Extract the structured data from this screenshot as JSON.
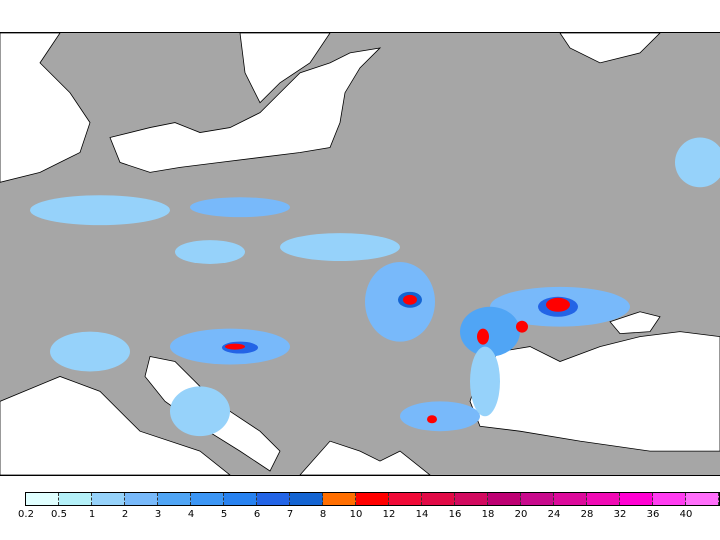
{
  "colors": {
    "land": "#a6a6a6",
    "sea": "#ffffff",
    "border": "#000000"
  },
  "legend": {
    "colors": [
      "#e0ffff",
      "#b4f0f8",
      "#96d2fa",
      "#78b9fa",
      "#50a5f5",
      "#3c96f5",
      "#2882f0",
      "#2364e6",
      "#1464d2",
      "#ff6e00",
      "#ff0000",
      "#f00a37",
      "#e10a46",
      "#d20a5f",
      "#be0073",
      "#c80a8c",
      "#dc0a9b",
      "#f00ab4",
      "#ff00d2",
      "#ff3cf0",
      "#ff6efa"
    ],
    "labels": [
      "0.2",
      "0.5",
      "1",
      "2",
      "3",
      "4",
      "5",
      "6",
      "7",
      "8",
      "10",
      "12",
      "14",
      "16",
      "18",
      "20",
      "24",
      "28",
      "32",
      "36",
      "40"
    ]
  }
}
